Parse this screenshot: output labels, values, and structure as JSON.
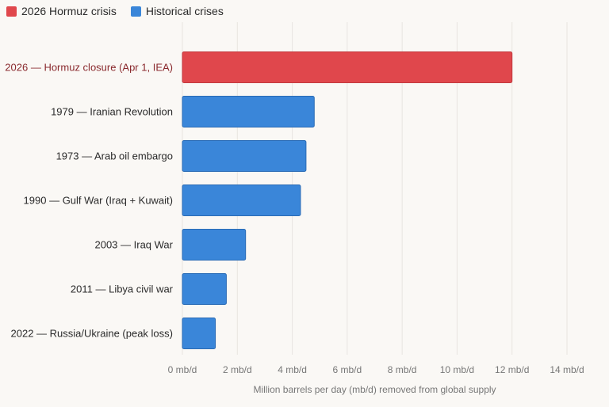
{
  "legend": {
    "items": [
      {
        "label": "2026 Hormuz crisis",
        "color": "#e0474c"
      },
      {
        "label": "Historical crises",
        "color": "#3a86d9"
      }
    ]
  },
  "chart_data": {
    "type": "bar",
    "orientation": "horizontal",
    "title": "",
    "xlabel": "Million barrels per day (mb/d) removed from global supply",
    "ylabel": "",
    "xlim": [
      0,
      14
    ],
    "tick_values": [
      0,
      2,
      4,
      6,
      8,
      10,
      12,
      14
    ],
    "tick_labels": [
      "0 mb/d",
      "2 mb/d",
      "4 mb/d",
      "6 mb/d",
      "8 mb/d",
      "10 mb/d",
      "12 mb/d",
      "14 mb/d"
    ],
    "grid": true,
    "legend_position": "top-left",
    "categories": [
      "2026 — Hormuz closure (Apr 1, IEA)",
      "1979 — Iranian Revolution",
      "1973 — Arab oil embargo",
      "1990 — Gulf War (Iraq + Kuwait)",
      "2003 — Iraq War",
      "2011 — Libya civil war",
      "2022 — Russia/Ukraine (peak loss)"
    ],
    "values": [
      12,
      4.8,
      4.5,
      4.3,
      2.3,
      1.6,
      1.2
    ],
    "series_membership": [
      "2026 Hormuz crisis",
      "Historical crises",
      "Historical crises",
      "Historical crises",
      "Historical crises",
      "Historical crises",
      "Historical crises"
    ],
    "colors": {
      "highlight": "#e0474c",
      "highlight_border": "#c23a3f",
      "highlight_label": "#8a2a2e",
      "historical": "#3a86d9",
      "historical_border": "#2a6bb5",
      "label": "#2a2a2a",
      "grid": "#e8e5e0"
    }
  }
}
